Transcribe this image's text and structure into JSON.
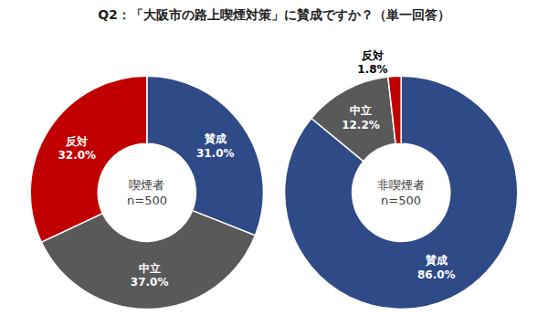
{
  "title": "Q2：「大阪市の路上喫煙対策」に賛成ですか？（単一回答）",
  "chart_data": [
    {
      "type": "pie",
      "center_label": [
        "喫煙者",
        "n=500"
      ],
      "categories": [
        "賛成",
        "中立",
        "反対"
      ],
      "values": [
        31.0,
        37.0,
        32.0
      ],
      "value_labels": [
        "31.0%",
        "37.0%",
        "32.0%"
      ],
      "colors": [
        "#2e4a87",
        "#595959",
        "#c00000"
      ],
      "data_labels": true
    },
    {
      "type": "pie",
      "center_label": [
        "非喫煙者",
        "n=500"
      ],
      "categories": [
        "賛成",
        "中立",
        "反対"
      ],
      "values": [
        86.0,
        12.2,
        1.8
      ],
      "value_labels": [
        "86.0%",
        "12.2%",
        "1.8%"
      ],
      "colors": [
        "#2e4a87",
        "#595959",
        "#c00000"
      ],
      "data_labels": true
    }
  ]
}
